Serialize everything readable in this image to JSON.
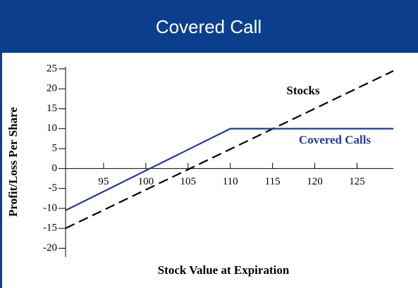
{
  "chart_data": {
    "type": "line",
    "title": "Covered Call",
    "xlabel": "Stock Value at Expiration",
    "ylabel": "Profit/Loss Per Share",
    "xlim": [
      90.5,
      129.3
    ],
    "ylim": [
      -22.2,
      25.5
    ],
    "xticks": [
      95,
      100,
      105,
      110,
      115,
      120,
      125
    ],
    "yticks": [
      -20,
      -15,
      -10,
      -5,
      0,
      5,
      10,
      15,
      20,
      25
    ],
    "series": [
      {
        "name": "Stocks",
        "color": "#000000",
        "line_style": "dashed",
        "x": [
          90.5,
          129.3
        ],
        "values": [
          -15,
          24.5
        ]
      },
      {
        "name": "Covered Calls",
        "color": "#1f3f8f",
        "line_style": "solid",
        "x": [
          90.5,
          110,
          129.3
        ],
        "values": [
          -10.5,
          10,
          10
        ]
      }
    ]
  }
}
